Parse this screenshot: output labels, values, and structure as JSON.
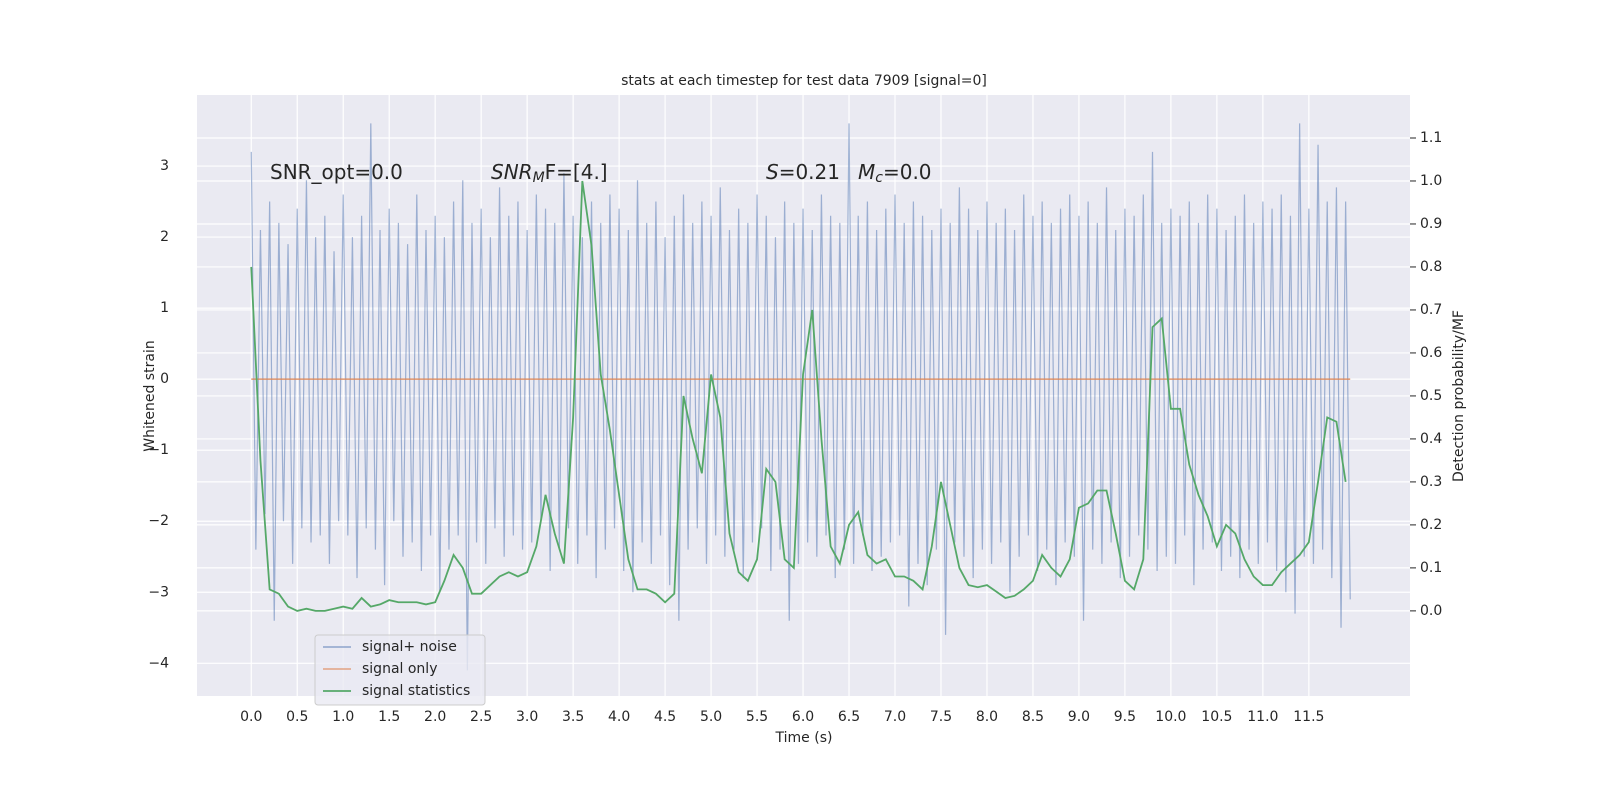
{
  "chart_data": {
    "type": "line",
    "title": "stats at each timestep for test data 7909 [signal=0]",
    "xlabel": "Time (s)",
    "ylabel": "Whitened strain",
    "y2label": "Detection probability/MF",
    "grid": true,
    "legend": "lower left",
    "xlim": [
      -0.59,
      12.6
    ],
    "ylim": [
      -4.46,
      4.0
    ],
    "y2lim": [
      -0.198,
      1.2
    ],
    "xticks": [
      {
        "value": 0,
        "label": "0.0"
      },
      {
        "value": 0.5,
        "label": "0.5"
      },
      {
        "value": 1,
        "label": "1.0"
      },
      {
        "value": 1.5,
        "label": "1.5"
      },
      {
        "value": 2,
        "label": "2.0"
      },
      {
        "value": 2.5,
        "label": "2.5"
      },
      {
        "value": 3,
        "label": "3.0"
      },
      {
        "value": 3.5,
        "label": "3.5"
      },
      {
        "value": 4,
        "label": "4.0"
      },
      {
        "value": 4.5,
        "label": "4.5"
      },
      {
        "value": 5,
        "label": "5.0"
      },
      {
        "value": 5.5,
        "label": "5.5"
      },
      {
        "value": 6,
        "label": "6.0"
      },
      {
        "value": 6.5,
        "label": "6.5"
      },
      {
        "value": 7,
        "label": "7.0"
      },
      {
        "value": 7.5,
        "label": "7.5"
      },
      {
        "value": 8,
        "label": "8.0"
      },
      {
        "value": 8.5,
        "label": "8.5"
      },
      {
        "value": 9,
        "label": "9.0"
      },
      {
        "value": 9.5,
        "label": "9.5"
      },
      {
        "value": 10,
        "label": "10.0"
      },
      {
        "value": 10.5,
        "label": "10.5"
      },
      {
        "value": 11,
        "label": "11.0"
      },
      {
        "value": 11.5,
        "label": "11.5"
      }
    ],
    "yticks": [
      {
        "value": -4,
        "label": "−4"
      },
      {
        "value": -3,
        "label": "−3"
      },
      {
        "value": -2,
        "label": "−2"
      },
      {
        "value": -1,
        "label": "−1"
      },
      {
        "value": 0,
        "label": "0"
      },
      {
        "value": 1,
        "label": "1"
      },
      {
        "value": 2,
        "label": "2"
      },
      {
        "value": 3,
        "label": "3"
      }
    ],
    "y2ticks": [
      {
        "value": 0,
        "label": "0.0"
      },
      {
        "value": 0.1,
        "label": "0.1"
      },
      {
        "value": 0.2,
        "label": "0.2"
      },
      {
        "value": 0.3,
        "label": "0.3"
      },
      {
        "value": 0.4,
        "label": "0.4"
      },
      {
        "value": 0.5,
        "label": "0.5"
      },
      {
        "value": 0.6,
        "label": "0.6"
      },
      {
        "value": 0.7,
        "label": "0.7"
      },
      {
        "value": 0.8,
        "label": "0.8"
      },
      {
        "value": 0.9,
        "label": "0.9"
      },
      {
        "value": 1.0,
        "label": "1.0"
      },
      {
        "value": 1.1,
        "label": "1.1"
      }
    ],
    "annotations": [
      [
        {
          "text": "SNR_opt=0.0"
        }
      ],
      [
        {
          "text": "SNR",
          "italic": true
        },
        {
          "text": "M",
          "italic": true,
          "sub": true
        },
        {
          "text": "F=[4.]"
        }
      ],
      [
        {
          "text": "S",
          "italic": true
        },
        {
          "text": "=0.21"
        }
      ],
      [
        {
          "text": "M",
          "italic": true
        },
        {
          "text": "c",
          "italic": true,
          "sub": true
        },
        {
          "text": "=0.0"
        }
      ]
    ],
    "series": [
      {
        "name": "signal+ noise",
        "color": "#4c72b0",
        "opacity": 0.5,
        "x": [
          0,
          0.05,
          0.1,
          0.15,
          0.2,
          0.25,
          0.3,
          0.35,
          0.4,
          0.45,
          0.5,
          0.55,
          0.6,
          0.65,
          0.7,
          0.75,
          0.8,
          0.85,
          0.9,
          0.95,
          1,
          1.05,
          1.1,
          1.15,
          1.2,
          1.25,
          1.3,
          1.35,
          1.4,
          1.45,
          1.5,
          1.55,
          1.6,
          1.65,
          1.7,
          1.75,
          1.8,
          1.85,
          1.9,
          1.95,
          2,
          2.05,
          2.1,
          2.15,
          2.2,
          2.25,
          2.3,
          2.35,
          2.4,
          2.45,
          2.5,
          2.55,
          2.6,
          2.65,
          2.7,
          2.75,
          2.8,
          2.85,
          2.9,
          2.95,
          3,
          3.05,
          3.1,
          3.15,
          3.2,
          3.25,
          3.3,
          3.35,
          3.4,
          3.45,
          3.5,
          3.55,
          3.6,
          3.65,
          3.7,
          3.75,
          3.8,
          3.85,
          3.9,
          3.95,
          4,
          4.05,
          4.1,
          4.15,
          4.2,
          4.25,
          4.3,
          4.35,
          4.4,
          4.45,
          4.5,
          4.55,
          4.6,
          4.65,
          4.7,
          4.75,
          4.8,
          4.85,
          4.9,
          4.95,
          5,
          5.05,
          5.1,
          5.15,
          5.2,
          5.25,
          5.3,
          5.35,
          5.4,
          5.45,
          5.5,
          5.55,
          5.6,
          5.65,
          5.7,
          5.75,
          5.8,
          5.85,
          5.9,
          5.95,
          6,
          6.05,
          6.1,
          6.15,
          6.2,
          6.25,
          6.3,
          6.35,
          6.4,
          6.45,
          6.5,
          6.55,
          6.6,
          6.65,
          6.7,
          6.75,
          6.8,
          6.85,
          6.9,
          6.95,
          7,
          7.05,
          7.1,
          7.15,
          7.2,
          7.25,
          7.3,
          7.35,
          7.4,
          7.45,
          7.5,
          7.55,
          7.6,
          7.65,
          7.7,
          7.75,
          7.8,
          7.85,
          7.9,
          7.95,
          8,
          8.05,
          8.1,
          8.15,
          8.2,
          8.25,
          8.3,
          8.35,
          8.4,
          8.45,
          8.5,
          8.55,
          8.6,
          8.65,
          8.7,
          8.75,
          8.8,
          8.85,
          8.9,
          8.95,
          9,
          9.05,
          9.1,
          9.15,
          9.2,
          9.25,
          9.3,
          9.35,
          9.4,
          9.45,
          9.5,
          9.55,
          9.6,
          9.65,
          9.7,
          9.75,
          9.8,
          9.85,
          9.9,
          9.95,
          10,
          10.05,
          10.1,
          10.15,
          10.2,
          10.25,
          10.3,
          10.35,
          10.4,
          10.45,
          10.5,
          10.55,
          10.6,
          10.65,
          10.7,
          10.75,
          10.8,
          10.85,
          10.9,
          10.95,
          11,
          11.05,
          11.1,
          11.15,
          11.2,
          11.25,
          11.3,
          11.35,
          11.4,
          11.45,
          11.5,
          11.55,
          11.6,
          11.65,
          11.7,
          11.75,
          11.8,
          11.85,
          11.9,
          11.95
        ],
        "values": [
          3.2,
          -2.4,
          2.1,
          -1.9,
          2.5,
          -3.4,
          2.2,
          -2.0,
          1.9,
          -2.6,
          2.4,
          -2.1,
          2.8,
          -2.3,
          2.0,
          -2.2,
          2.3,
          -2.6,
          1.8,
          -2.0,
          2.6,
          -2.2,
          2.0,
          -2.8,
          2.3,
          -2.1,
          3.6,
          -2.4,
          2.1,
          -2.9,
          2.4,
          -2.0,
          2.2,
          -2.5,
          1.9,
          -2.3,
          2.6,
          -2.7,
          2.1,
          -2.2,
          2.3,
          -3.0,
          2.0,
          -2.4,
          2.5,
          -2.2,
          2.8,
          -4.1,
          2.2,
          -2.3,
          2.4,
          -2.6,
          2.0,
          -2.1,
          2.7,
          -2.5,
          2.3,
          -2.2,
          2.5,
          -2.4,
          2.1,
          -2.3,
          2.6,
          -2.0,
          2.4,
          -2.7,
          2.2,
          -2.4,
          2.9,
          -2.1,
          2.3,
          -2.6,
          2.0,
          -2.2,
          2.5,
          -2.8,
          2.2,
          -2.4,
          2.6,
          -2.1,
          2.4,
          -2.7,
          2.1,
          -3.0,
          2.8,
          -2.3,
          2.2,
          -2.6,
          2.5,
          -2.2,
          2.0,
          -2.9,
          2.3,
          -3.4,
          2.6,
          -2.4,
          2.2,
          -2.1,
          2.5,
          -2.6,
          2.3,
          -2.2,
          2.7,
          -2.5,
          2.1,
          -2.4,
          2.4,
          -2.8,
          2.2,
          -2.3,
          2.6,
          -2.1,
          2.3,
          -2.7,
          2.0,
          -2.4,
          2.5,
          -3.4,
          2.2,
          -2.6,
          2.4,
          -2.3,
          2.1,
          -2.5,
          2.6,
          -2.2,
          2.3,
          -2.8,
          2.2,
          -2.4,
          3.6,
          -2.6,
          2.3,
          -2.2,
          2.5,
          -2.7,
          2.1,
          -2.5,
          2.4,
          -2.3,
          2.6,
          -2.2,
          2.2,
          -3.2,
          2.5,
          -2.6,
          2.3,
          -2.9,
          2.1,
          -2.4,
          2.4,
          -3.6,
          2.2,
          -2.3,
          2.7,
          -2.5,
          2.4,
          -2.8,
          2.1,
          -2.4,
          2.5,
          -2.6,
          2.2,
          -2.3,
          2.4,
          -3.0,
          2.1,
          -2.5,
          2.6,
          -2.2,
          2.3,
          -2.7,
          2.5,
          -2.4,
          2.2,
          -2.9,
          2.4,
          -2.3,
          2.6,
          -2.5,
          2.3,
          -3.4,
          2.5,
          -2.4,
          2.2,
          -2.6,
          2.7,
          -2.3,
          2.1,
          -2.8,
          2.4,
          -2.5,
          2.3,
          -2.2,
          2.6,
          -2.4,
          3.2,
          -2.7,
          2.2,
          -2.5,
          2.4,
          -2.6,
          2.3,
          -2.2,
          2.5,
          -2.9,
          2.2,
          -2.4,
          2.6,
          -2.3,
          2.4,
          -2.7,
          2.1,
          -2.5,
          2.3,
          -2.8,
          2.6,
          -2.4,
          2.2,
          -2.6,
          2.5,
          -2.3,
          2.4,
          -2.7,
          2.6,
          -3.0,
          2.3,
          -3.3,
          3.6,
          -2.5,
          2.4,
          -2.6,
          3.3,
          -2.4,
          2.5,
          -2.8,
          2.7,
          -3.5,
          2.5,
          -3.1
        ]
      },
      {
        "name": "signal only",
        "color": "#dd8452",
        "x": [
          0,
          11.95
        ],
        "values": [
          0,
          0
        ]
      },
      {
        "name": "signal statistics",
        "color": "#55a868",
        "axis": "y2",
        "x": [
          0,
          0.1,
          0.2,
          0.3,
          0.4,
          0.5,
          0.6,
          0.7,
          0.8,
          0.9,
          1,
          1.1,
          1.2,
          1.3,
          1.4,
          1.5,
          1.6,
          1.7,
          1.8,
          1.9,
          2,
          2.1,
          2.2,
          2.3,
          2.4,
          2.5,
          2.6,
          2.7,
          2.8,
          2.9,
          3,
          3.1,
          3.2,
          3.3,
          3.4,
          3.5,
          3.6,
          3.7,
          3.8,
          3.9,
          4,
          4.1,
          4.2,
          4.3,
          4.4,
          4.5,
          4.6,
          4.7,
          4.8,
          4.9,
          5,
          5.1,
          5.2,
          5.3,
          5.4,
          5.5,
          5.6,
          5.7,
          5.8,
          5.9,
          6,
          6.1,
          6.2,
          6.3,
          6.4,
          6.5,
          6.6,
          6.7,
          6.8,
          6.9,
          7,
          7.1,
          7.2,
          7.3,
          7.4,
          7.5,
          7.6,
          7.7,
          7.8,
          7.9,
          8,
          8.1,
          8.2,
          8.3,
          8.4,
          8.5,
          8.6,
          8.7,
          8.8,
          8.9,
          9,
          9.1,
          9.2,
          9.3,
          9.4,
          9.5,
          9.6,
          9.7,
          9.8,
          9.9,
          10,
          10.1,
          10.2,
          10.3,
          10.4,
          10.5,
          10.6,
          10.7,
          10.8,
          10.9,
          11,
          11.1,
          11.2,
          11.3,
          11.4,
          11.5,
          11.6,
          11.7,
          11.8,
          11.9
        ],
        "values": [
          0.8,
          0.35,
          0.05,
          0.04,
          0.01,
          0,
          0.005,
          0,
          0,
          0.005,
          0.01,
          0.005,
          0.03,
          0.01,
          0.015,
          0.025,
          0.02,
          0.02,
          0.02,
          0.015,
          0.02,
          0.07,
          0.13,
          0.1,
          0.04,
          0.04,
          0.06,
          0.08,
          0.09,
          0.08,
          0.09,
          0.15,
          0.27,
          0.18,
          0.11,
          0.45,
          1.0,
          0.85,
          0.55,
          0.42,
          0.27,
          0.12,
          0.05,
          0.05,
          0.04,
          0.02,
          0.04,
          0.5,
          0.4,
          0.32,
          0.55,
          0.45,
          0.18,
          0.09,
          0.07,
          0.12,
          0.33,
          0.3,
          0.12,
          0.1,
          0.55,
          0.7,
          0.4,
          0.15,
          0.11,
          0.2,
          0.23,
          0.13,
          0.11,
          0.12,
          0.08,
          0.08,
          0.07,
          0.05,
          0.15,
          0.3,
          0.2,
          0.1,
          0.06,
          0.055,
          0.06,
          0.045,
          0.03,
          0.035,
          0.05,
          0.07,
          0.13,
          0.1,
          0.08,
          0.12,
          0.24,
          0.25,
          0.28,
          0.28,
          0.18,
          0.07,
          0.05,
          0.12,
          0.66,
          0.68,
          0.47,
          0.47,
          0.34,
          0.27,
          0.22,
          0.15,
          0.2,
          0.18,
          0.12,
          0.08,
          0.06,
          0.06,
          0.09,
          0.11,
          0.13,
          0.16,
          0.3,
          0.45,
          0.44,
          0.3
        ]
      }
    ]
  }
}
